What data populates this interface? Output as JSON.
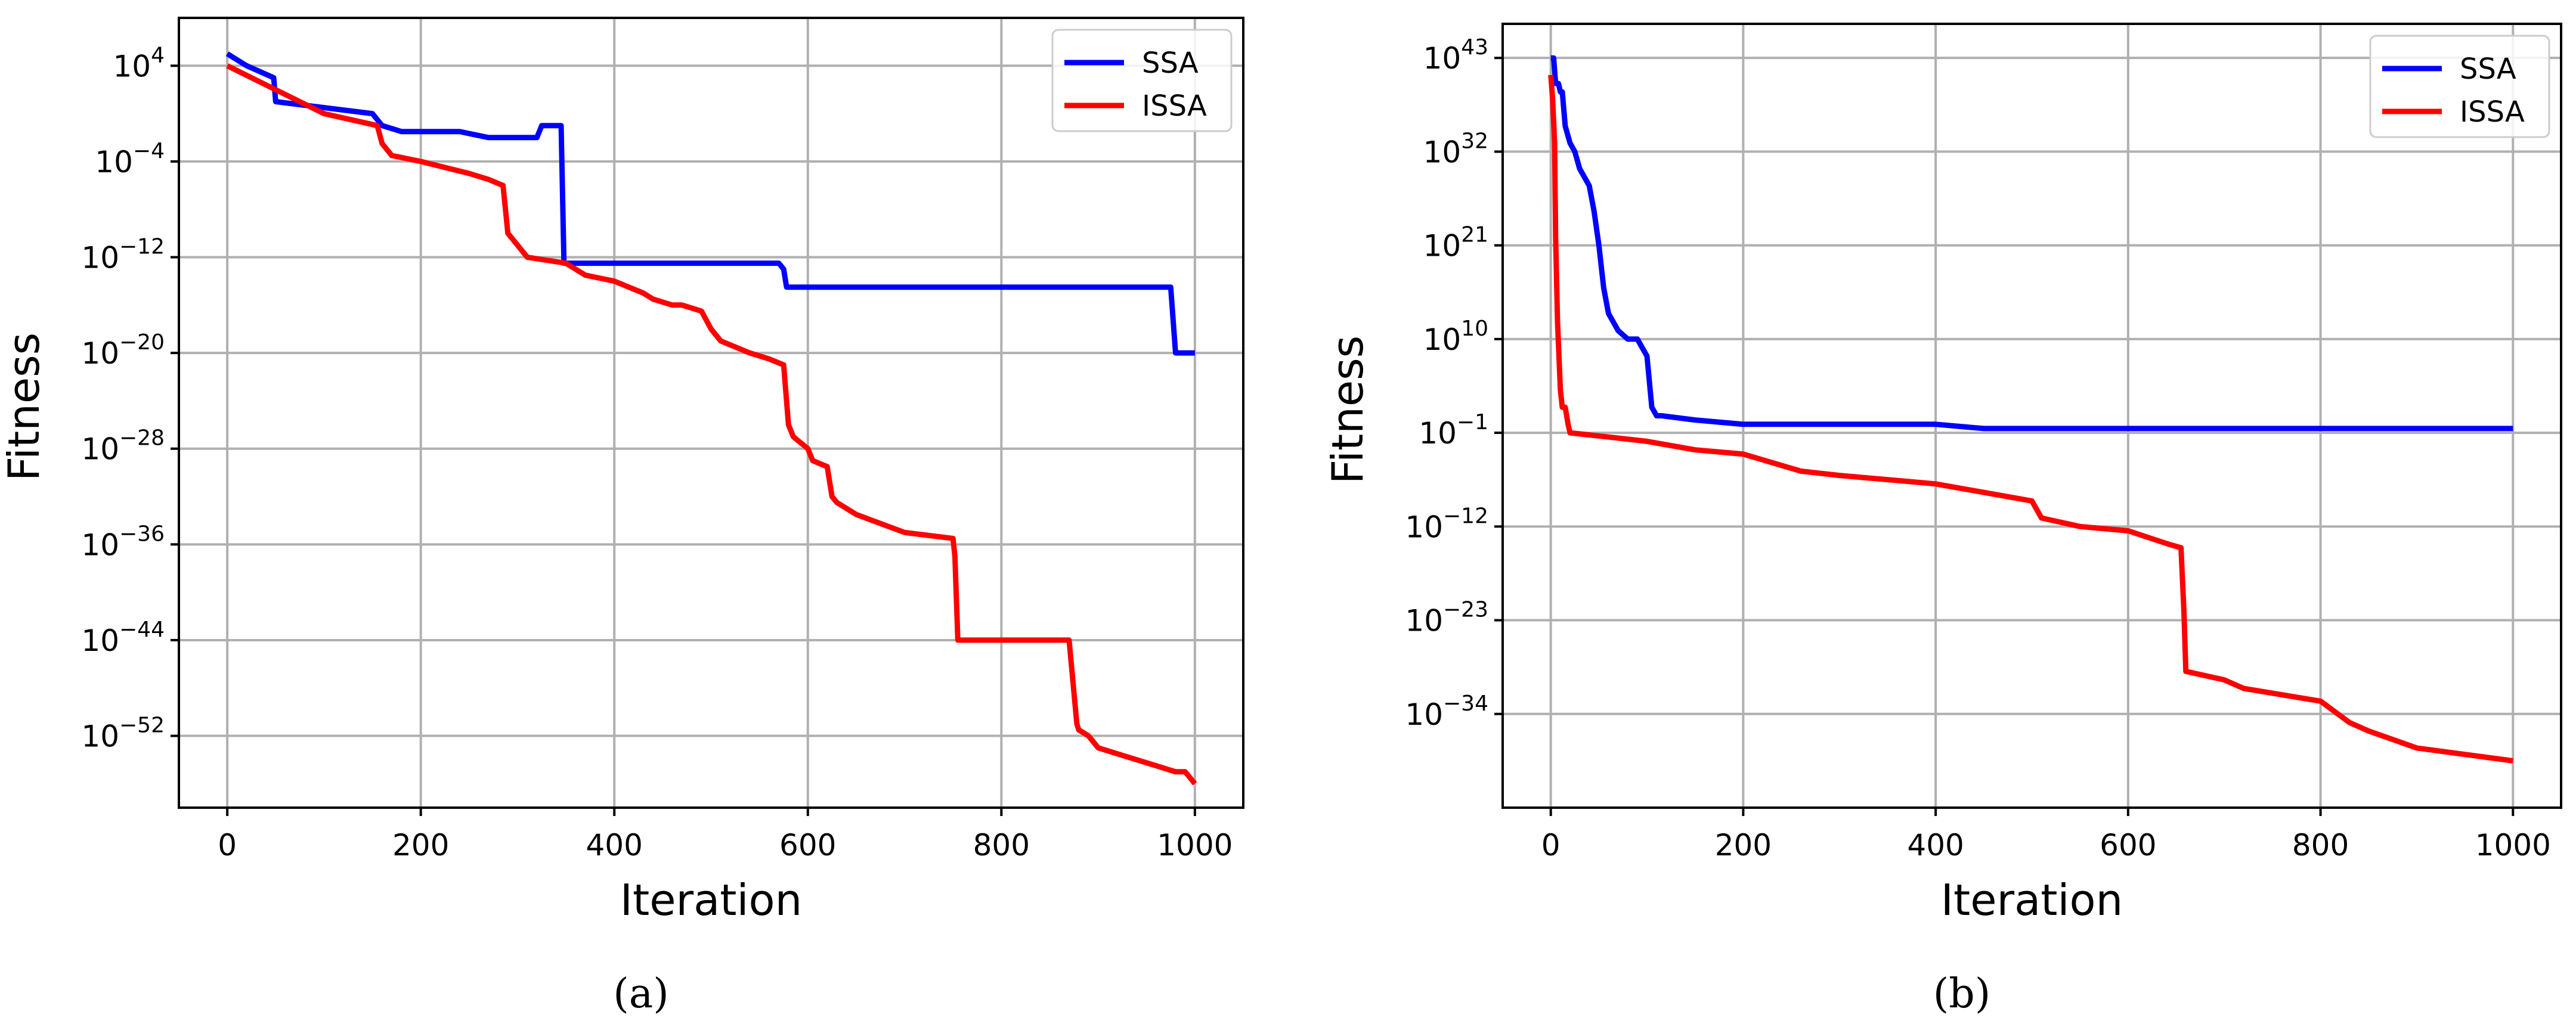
{
  "figure": {
    "colors": {
      "SSA": "#0000ff",
      "ISSA": "#ff0000",
      "grid": "#b0b0b0",
      "axes": "#000000"
    },
    "panels": [
      {
        "caption": "(a)",
        "chart_data": {
          "type": "line",
          "title": "",
          "xlabel": "Iteration",
          "ylabel": "Fitness",
          "yscale": "log",
          "xlim": [
            -50,
            1050
          ],
          "ylim_exp": [
            -58,
            8
          ],
          "xticks": [
            0,
            200,
            400,
            600,
            800,
            1000
          ],
          "xtick_labels": [
            "0",
            "200",
            "400",
            "600",
            "800",
            "1000"
          ],
          "yticks_exp": [
            4,
            -4,
            -12,
            -20,
            -28,
            -36,
            -44,
            -52
          ],
          "ytick_mantissa": "10",
          "ytick_exponents": [
            "4",
            "−4",
            "−12",
            "−20",
            "−28",
            "−36",
            "−44",
            "−52"
          ],
          "grid": true,
          "legend_position": "top-right",
          "series": [
            {
              "name": "SSA",
              "color": "#0000ff",
              "x": [
                0,
                20,
                48,
                50,
                150,
                160,
                180,
                240,
                270,
                320,
                325,
                345,
                348,
                570,
                575,
                578,
                975,
                980,
                1000
              ],
              "y_exp": [
                5,
                4,
                3,
                1,
                0,
                -1,
                -1.5,
                -1.5,
                -2,
                -2,
                -1,
                -1,
                -12.5,
                -12.5,
                -13,
                -14.5,
                -14.5,
                -20,
                -20
              ]
            },
            {
              "name": "ISSA",
              "color": "#ff0000",
              "x": [
                0,
                50,
                100,
                155,
                160,
                170,
                200,
                250,
                270,
                285,
                290,
                300,
                310,
                350,
                370,
                400,
                430,
                440,
                460,
                470,
                490,
                500,
                510,
                540,
                560,
                575,
                580,
                585,
                600,
                605,
                620,
                625,
                630,
                650,
                700,
                750,
                752,
                755,
                760,
                800,
                870,
                878,
                880,
                890,
                900,
                920,
                940,
                960,
                980,
                990,
                1000
              ],
              "y_exp": [
                4,
                2,
                0,
                -1,
                -2.5,
                -3.5,
                -4,
                -5,
                -5.5,
                -6,
                -10,
                -11,
                -12,
                -12.5,
                -13.5,
                -14,
                -15,
                -15.5,
                -16,
                -16,
                -16.5,
                -18,
                -19,
                -20,
                -20.5,
                -21,
                -26,
                -27,
                -28,
                -29,
                -29.5,
                -32,
                -32.5,
                -33.5,
                -35,
                -35.5,
                -37,
                -44,
                -44,
                -44,
                -44,
                -51,
                -51.5,
                -52,
                -53,
                -53.5,
                -54,
                -54.5,
                -55,
                -55,
                -56
              ]
            }
          ]
        }
      },
      {
        "caption": "(b)",
        "chart_data": {
          "type": "line",
          "title": "",
          "xlabel": "Iteration",
          "ylabel": "Fitness",
          "yscale": "log",
          "xlim": [
            -50,
            1050
          ],
          "ylim_exp": [
            -45,
            47
          ],
          "xticks": [
            0,
            200,
            400,
            600,
            800,
            1000
          ],
          "xtick_labels": [
            "0",
            "200",
            "400",
            "600",
            "800",
            "1000"
          ],
          "yticks_exp": [
            43,
            32,
            21,
            10,
            -1,
            -12,
            -23,
            -34
          ],
          "ytick_mantissa": "10",
          "ytick_exponents": [
            "43",
            "32",
            "21",
            "10",
            "−1",
            "−12",
            "−23",
            "−34"
          ],
          "grid": true,
          "legend_position": "top-right",
          "series": [
            {
              "name": "SSA",
              "color": "#0000ff",
              "x": [
                0,
                3,
                5,
                8,
                10,
                12,
                15,
                20,
                25,
                30,
                40,
                45,
                50,
                55,
                60,
                65,
                70,
                80,
                90,
                100,
                105,
                110,
                115,
                150,
                200,
                400,
                450,
                1000
              ],
              "y_exp": [
                43,
                43,
                40,
                40,
                39,
                39,
                35,
                33,
                32,
                30,
                28,
                25,
                21,
                16,
                13,
                12,
                11,
                10,
                10,
                8,
                2,
                1,
                1,
                0.5,
                0,
                0,
                -0.5,
                -0.5
              ]
            },
            {
              "name": "ISSA",
              "color": "#ff0000",
              "x": [
                0,
                2,
                4,
                5,
                7,
                10,
                12,
                15,
                18,
                20,
                60,
                100,
                150,
                200,
                260,
                300,
                400,
                450,
                500,
                510,
                550,
                600,
                640,
                655,
                658,
                660,
                700,
                720,
                800,
                830,
                850,
                900,
                1000
              ],
              "y_exp": [
                41,
                38,
                33,
                22,
                12,
                4,
                2,
                2,
                0,
                -1,
                -1.5,
                -2,
                -3,
                -3.5,
                -5.5,
                -6,
                -7,
                -8,
                -9,
                -11,
                -12,
                -12.5,
                -14,
                -14.5,
                -22,
                -29,
                -30,
                -31,
                -32.5,
                -35,
                -36,
                -38,
                -39.5
              ]
            }
          ]
        }
      }
    ]
  }
}
